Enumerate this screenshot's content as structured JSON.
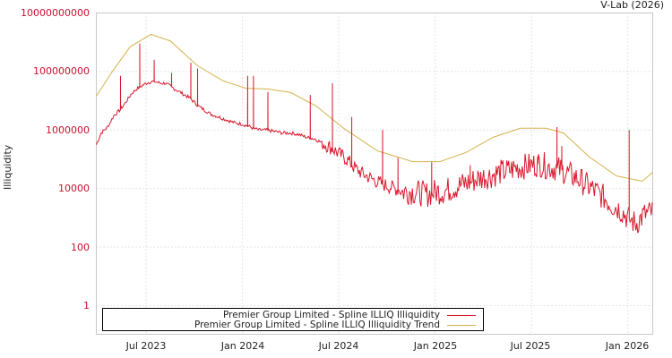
{
  "credit": "V-Lab (2026)",
  "colors": {
    "series": "#d7192d",
    "trend": "#d4b24a",
    "ytick": "#c8102e",
    "grid": "#c8c8c8",
    "frame": "#c8c8c8"
  },
  "legend": {
    "items": [
      {
        "label": "Premier Group Limited - Spline ILLIQ Illiquidity",
        "color": "#d7192d"
      },
      {
        "label": "Premier Group Limited - Spline ILLIQ Illiquidity Trend",
        "color": "#d4b24a"
      }
    ]
  },
  "chart_data": {
    "type": "line",
    "title": "",
    "xlabel": "",
    "ylabel": "Illiquidity",
    "yscale": "log",
    "ylim": [
      0.1,
      10000000000
    ],
    "y_ticks": [
      "10000000000",
      "100000000",
      "1000000",
      "10000",
      "100",
      "1"
    ],
    "x_ticks": [
      "Jul 2023",
      "Jan 2024",
      "Jul 2024",
      "Jan 2025",
      "Jul 2025",
      "Jan 2026"
    ],
    "x_unit": "months since Jan 2023",
    "xlim": [
      2.9,
      37.55
    ],
    "grid": true,
    "legend_position": "bottom-left inside",
    "series": [
      {
        "name": "Premier Group Limited - Spline ILLIQ Illiquidity",
        "note": "values are log10(illiquidity), approximate",
        "x": [
          2.9,
          3.2,
          3.6,
          4.0,
          4.4,
          4.8,
          5.1,
          5.4,
          5.7,
          6.0,
          6.3,
          6.6,
          6.9,
          7.2,
          7.5,
          7.8,
          8.1,
          8.4,
          8.7,
          9.0,
          9.3,
          9.6,
          10.0,
          10.5,
          11.0,
          11.5,
          12.0,
          12.5,
          13.0,
          13.5,
          14.0,
          14.5,
          15.0,
          15.5,
          16.0,
          16.5,
          17.0,
          17.5,
          18.0,
          18.5,
          19.0,
          19.5,
          20.0,
          20.5,
          21.0,
          21.5,
          22.0,
          22.5,
          23.0,
          23.5,
          24.0,
          24.5,
          25.0,
          25.5,
          26.0,
          26.5,
          27.0,
          27.5,
          28.0,
          28.5,
          29.0,
          29.5,
          30.0,
          30.5,
          31.0,
          31.5,
          32.0,
          32.5,
          33.0,
          33.5,
          34.0,
          34.5,
          35.0,
          35.5,
          36.0,
          36.5,
          37.0,
          37.55
        ],
        "log10_values": [
          5.5,
          5.9,
          6.1,
          6.5,
          6.7,
          7.0,
          7.25,
          7.4,
          7.5,
          7.6,
          7.65,
          7.65,
          7.6,
          7.6,
          7.5,
          7.4,
          7.3,
          7.2,
          7.1,
          6.95,
          6.8,
          6.7,
          6.55,
          6.45,
          6.35,
          6.25,
          6.2,
          6.1,
          6.0,
          6.0,
          5.95,
          5.9,
          5.9,
          5.85,
          5.75,
          5.7,
          5.55,
          5.4,
          5.2,
          5.0,
          4.7,
          4.5,
          4.35,
          4.2,
          4.1,
          4.0,
          3.9,
          3.9,
          3.85,
          3.8,
          3.9,
          3.9,
          4.0,
          4.1,
          4.2,
          4.3,
          4.4,
          4.45,
          4.55,
          4.6,
          4.7,
          4.75,
          4.8,
          4.85,
          4.75,
          4.7,
          4.6,
          4.45,
          4.3,
          4.1,
          3.9,
          3.7,
          3.45,
          3.3,
          3.0,
          2.8,
          3.1,
          3.2
        ],
        "spikes": [
          {
            "x": 4.4,
            "log10_value": 7.85
          },
          {
            "x": 5.6,
            "log10_value": 8.95
          },
          {
            "x": 6.5,
            "log10_value": 8.4
          },
          {
            "x": 7.6,
            "log10_value": 7.95
          },
          {
            "x": 8.8,
            "log10_value": 8.3
          },
          {
            "x": 9.2,
            "log10_value": 8.1
          },
          {
            "x": 12.3,
            "log10_value": 7.85
          },
          {
            "x": 12.7,
            "log10_value": 7.85
          },
          {
            "x": 13.6,
            "log10_value": 7.3
          },
          {
            "x": 16.2,
            "log10_value": 7.2
          },
          {
            "x": 17.6,
            "log10_value": 7.6
          },
          {
            "x": 18.8,
            "log10_value": 6.45
          },
          {
            "x": 20.7,
            "log10_value": 6.0
          },
          {
            "x": 21.7,
            "log10_value": 5.05
          },
          {
            "x": 23.8,
            "log10_value": 4.9
          },
          {
            "x": 26.2,
            "log10_value": 4.8
          },
          {
            "x": 30.4,
            "log10_value": 5.1
          },
          {
            "x": 31.6,
            "log10_value": 6.1
          },
          {
            "x": 31.9,
            "log10_value": 5.45
          },
          {
            "x": 36.05,
            "log10_value": 6.0
          }
        ]
      },
      {
        "name": "Premier Group Limited - Spline ILLIQ Illiquidity Trend",
        "note": "values are log10(illiquidity), approximate",
        "x": [
          2.9,
          3.9,
          5.0,
          6.3,
          7.5,
          9.2,
          10.8,
          12.2,
          13.6,
          15.0,
          16.6,
          18.3,
          20.4,
          22.6,
          24.3,
          25.9,
          27.6,
          29.3,
          30.9,
          32.0,
          33.6,
          35.3,
          36.9,
          37.55
        ],
        "log10_values": [
          7.16,
          8.0,
          8.84,
          9.27,
          9.05,
          8.2,
          7.68,
          7.43,
          7.4,
          7.28,
          6.82,
          6.06,
          5.29,
          4.92,
          4.92,
          5.23,
          5.75,
          6.06,
          6.06,
          5.9,
          5.08,
          4.43,
          4.25,
          4.56
        ]
      }
    ]
  }
}
